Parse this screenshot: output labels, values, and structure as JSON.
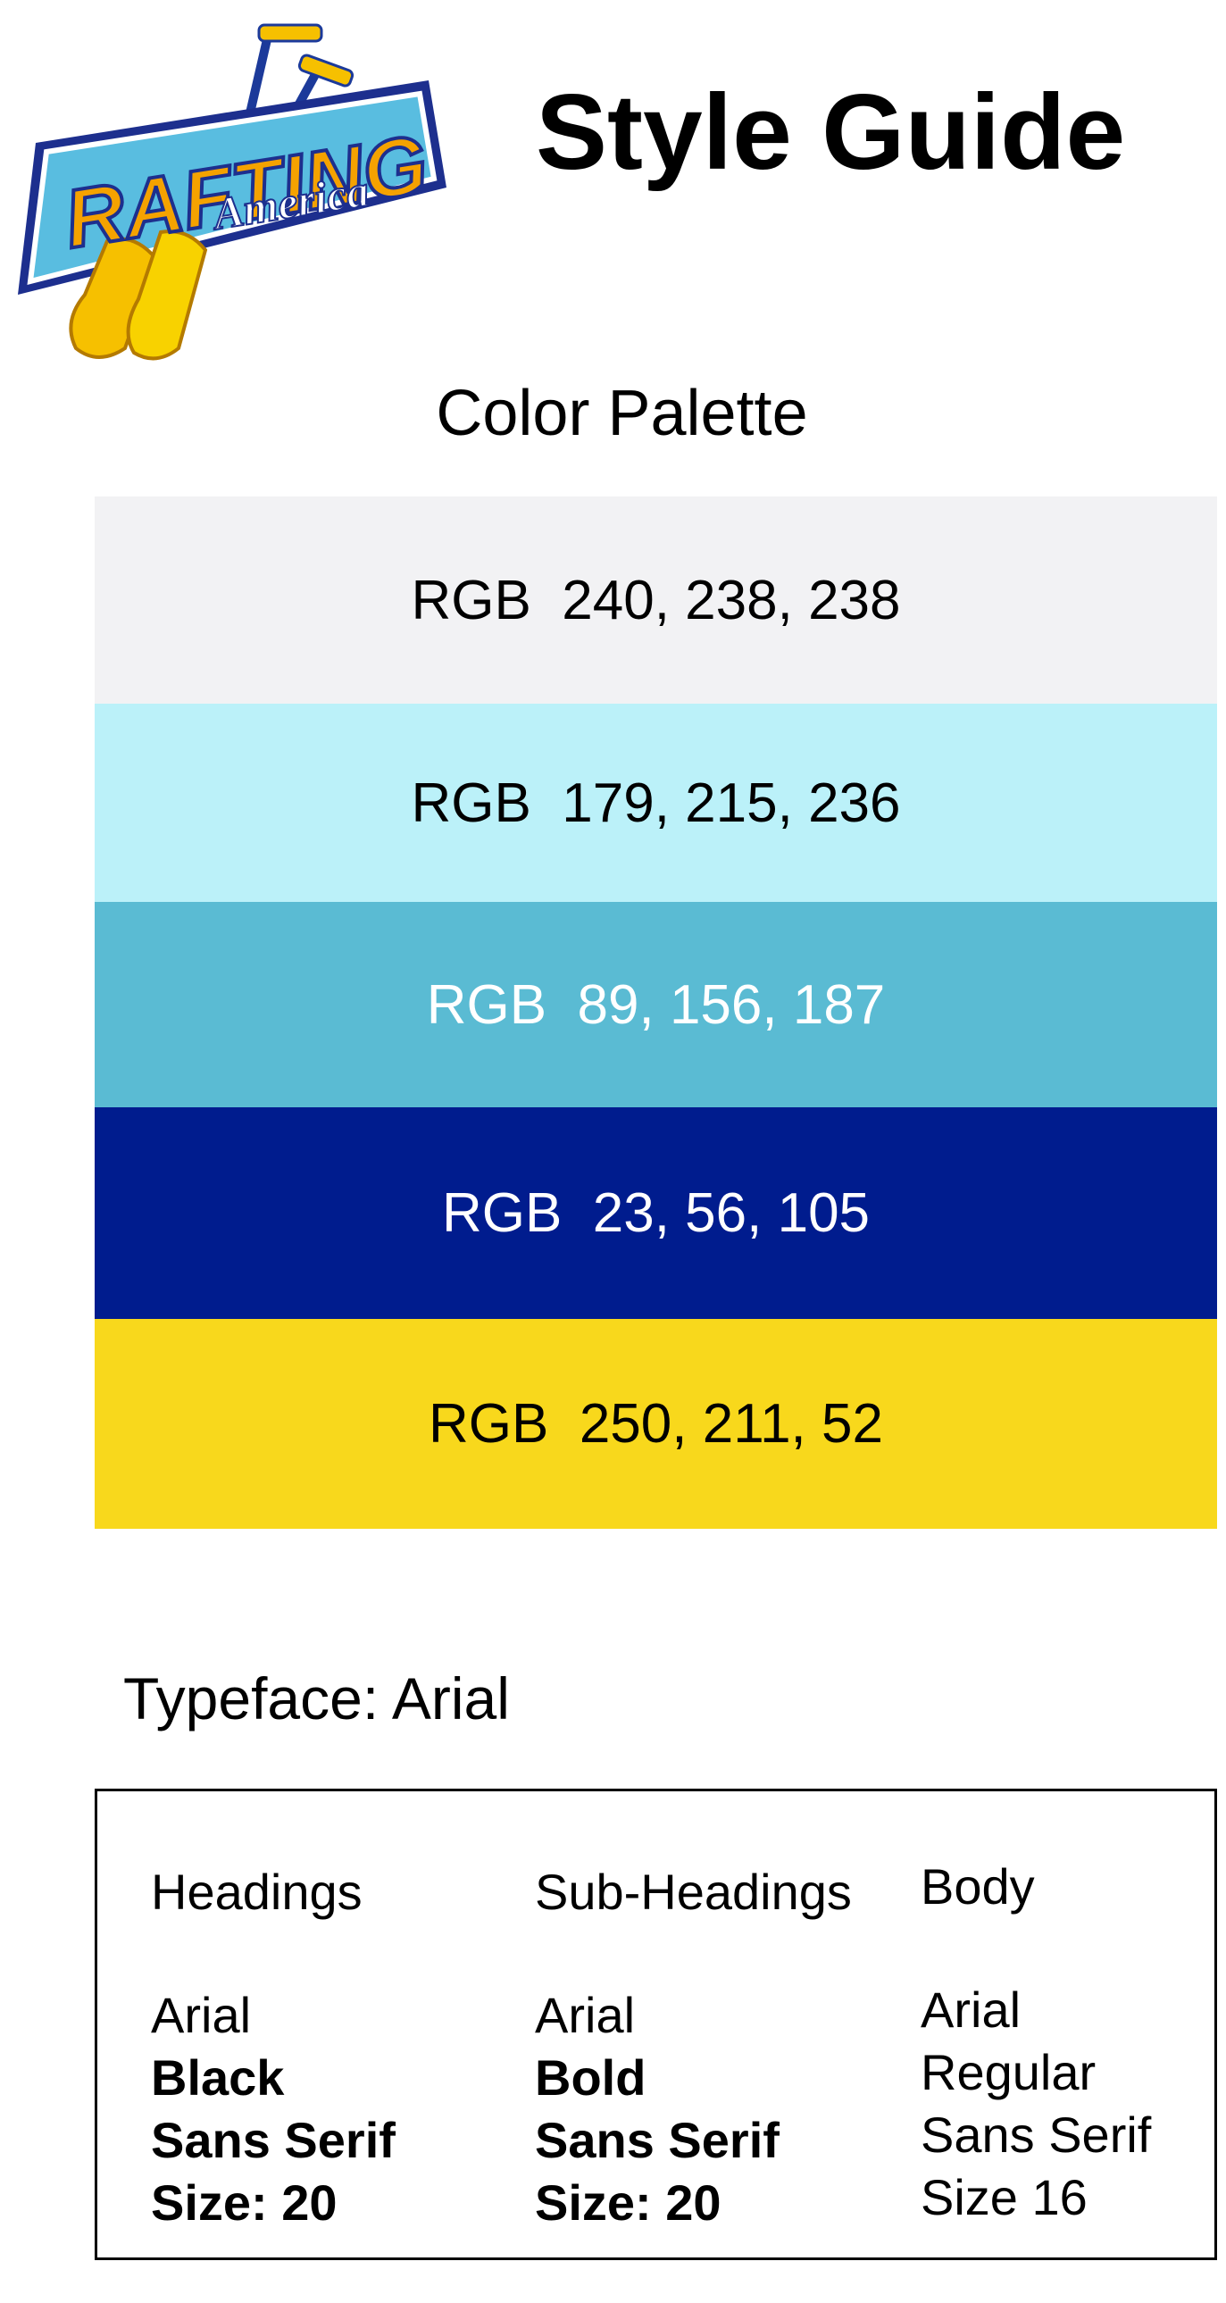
{
  "logo": {
    "line1": "RAFTING",
    "line2": "America"
  },
  "header": {
    "title": "Style Guide"
  },
  "palette": {
    "title": "Color Palette",
    "swatches": [
      {
        "label": "RGB  240, 238, 238",
        "color": "#f2f2f4",
        "text_color": "#000000"
      },
      {
        "label": "RGB  179, 215, 236",
        "color": "#bbf1f9",
        "text_color": "#000000"
      },
      {
        "label": "RGB  89, 156, 187",
        "color": "#5abbd3",
        "text_color": "#ffffff"
      },
      {
        "label": "RGB  23, 56, 105",
        "color": "#001c8e",
        "text_color": "#ffffff"
      },
      {
        "label": "RGB  250, 211, 52",
        "color": "#f8d81c",
        "text_color": "#000000"
      }
    ]
  },
  "typeface": {
    "title": "Typeface: Arial",
    "columns": [
      {
        "heading": "Headings",
        "lines": [
          "Arial",
          "Black",
          "Sans Serif",
          "Size: 20"
        ]
      },
      {
        "heading": "Sub-Headings",
        "lines": [
          "Arial",
          "Bold",
          "Sans Serif",
          "Size: 20"
        ]
      },
      {
        "heading": "Body",
        "lines": [
          "Arial",
          "Regular",
          "Sans Serif",
          "Size 16"
        ]
      }
    ]
  }
}
